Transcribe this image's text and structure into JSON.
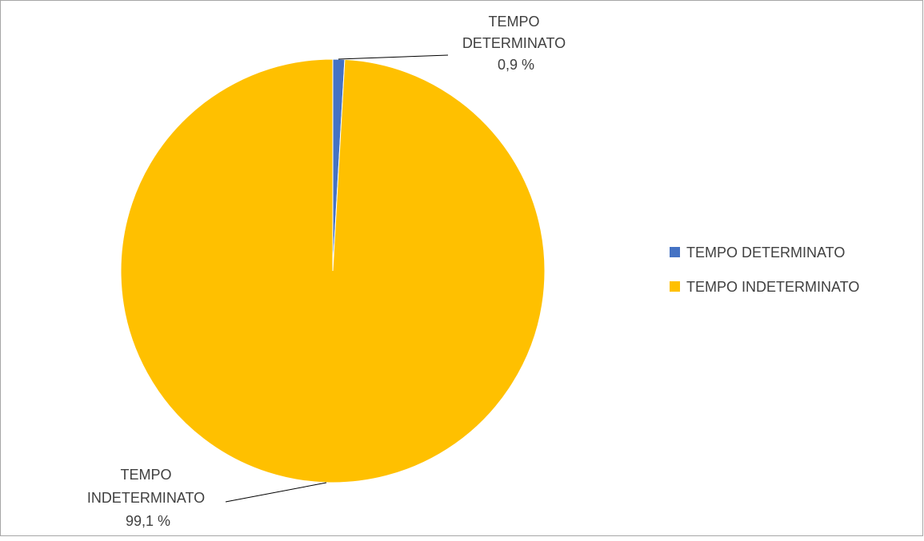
{
  "chart_data": {
    "type": "pie",
    "title": "",
    "slices": [
      {
        "name": "TEMPO DETERMINATO",
        "label_lines": [
          "TEMPO",
          "DETERMINATO"
        ],
        "value": 0.9,
        "value_label": "0,9 %",
        "color": "#4472C4"
      },
      {
        "name": "TEMPO INDETERMINATO",
        "label_lines": [
          "TEMPO",
          "INDETERMINATO"
        ],
        "value": 99.1,
        "value_label": "99,1 %",
        "color": "#FFC000"
      }
    ],
    "legend": {
      "placement": "right",
      "entries": [
        "TEMPO DETERMINATO",
        "TEMPO INDETERMINATO"
      ]
    }
  }
}
